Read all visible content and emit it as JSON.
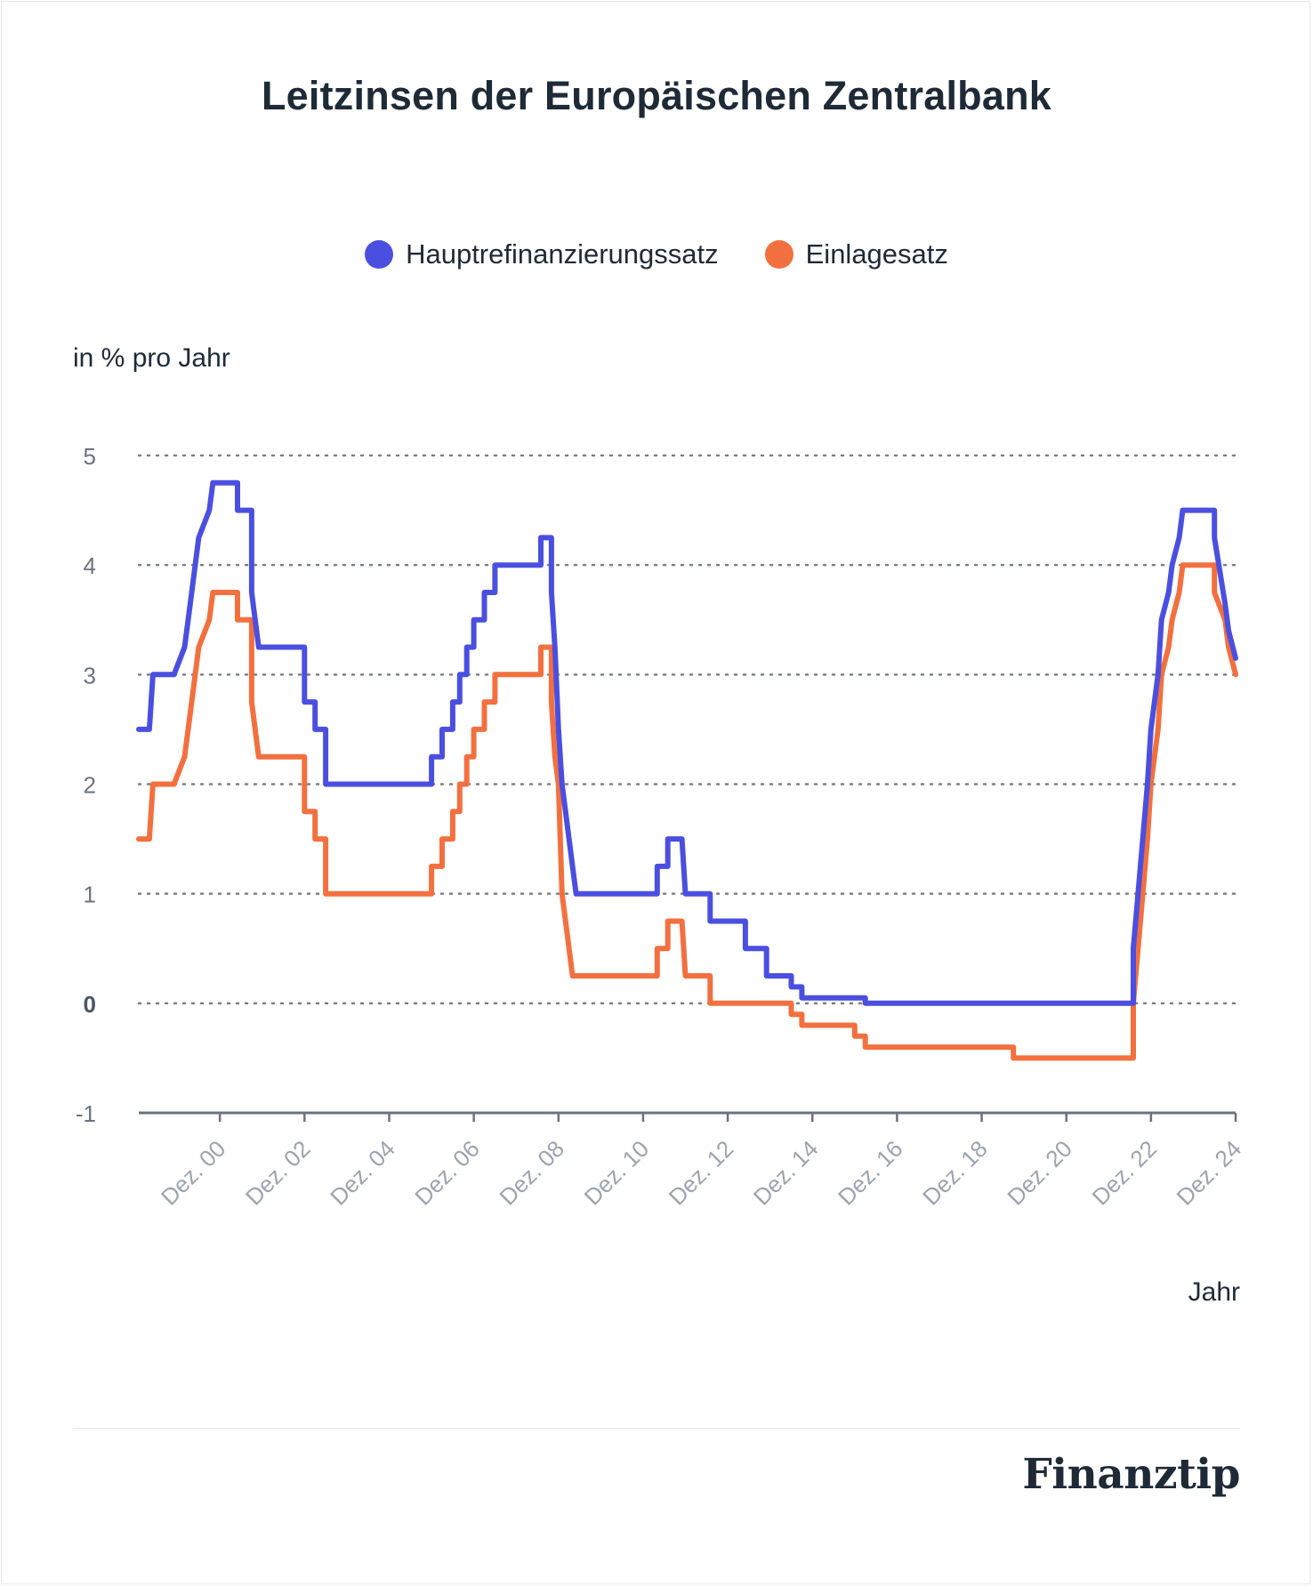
{
  "chart_data": {
    "type": "line",
    "title": "Leitzinsen der Europäischen Zentralbank",
    "ylabel": "in % pro Jahr",
    "xlabel": "Jahr",
    "ylim": [
      -1,
      5
    ],
    "yticks": [
      {
        "value": 5,
        "label": "5"
      },
      {
        "value": 4,
        "label": "4"
      },
      {
        "value": 3,
        "label": "3"
      },
      {
        "value": 2,
        "label": "2"
      },
      {
        "value": 1,
        "label": "1"
      },
      {
        "value": 0,
        "label": "0"
      },
      {
        "value": -1,
        "label": "-1"
      }
    ],
    "xlim": [
      "1999-01",
      "2024-12"
    ],
    "xticks": [
      "Dez. 00",
      "Dez. 02",
      "Dez. 04",
      "Dez. 06",
      "Dez. 08",
      "Dez. 10",
      "Dez. 12",
      "Dez. 14",
      "Dez. 16",
      "Dez. 18",
      "Dez. 20",
      "Dez. 22",
      "Dez. 24"
    ],
    "grid": true,
    "legend_position": "top-center",
    "series": [
      {
        "name": "Hauptrefinanzierungssatz",
        "color": "#4a4fe0",
        "points": [
          [
            "1999-01",
            2.5
          ],
          [
            "1999-04",
            2.5
          ],
          [
            "1999-05",
            3.0
          ],
          [
            "1999-11",
            3.0
          ],
          [
            "2000-02",
            3.25
          ],
          [
            "2000-03",
            3.5
          ],
          [
            "2000-04",
            3.75
          ],
          [
            "2000-06",
            4.25
          ],
          [
            "2000-09",
            4.5
          ],
          [
            "2000-10",
            4.75
          ],
          [
            "2001-05",
            4.75
          ],
          [
            "2001-05",
            4.5
          ],
          [
            "2001-09",
            4.5
          ],
          [
            "2001-09",
            3.75
          ],
          [
            "2001-11",
            3.25
          ],
          [
            "2002-12",
            3.25
          ],
          [
            "2002-12",
            2.75
          ],
          [
            "2003-03",
            2.75
          ],
          [
            "2003-03",
            2.5
          ],
          [
            "2003-06",
            2.5
          ],
          [
            "2003-06",
            2.0
          ],
          [
            "2005-12",
            2.0
          ],
          [
            "2005-12",
            2.25
          ],
          [
            "2006-03",
            2.25
          ],
          [
            "2006-03",
            2.5
          ],
          [
            "2006-06",
            2.5
          ],
          [
            "2006-06",
            2.75
          ],
          [
            "2006-08",
            2.75
          ],
          [
            "2006-08",
            3.0
          ],
          [
            "2006-10",
            3.0
          ],
          [
            "2006-10",
            3.25
          ],
          [
            "2006-12",
            3.25
          ],
          [
            "2006-12",
            3.5
          ],
          [
            "2007-03",
            3.5
          ],
          [
            "2007-03",
            3.75
          ],
          [
            "2007-06",
            3.75
          ],
          [
            "2007-06",
            4.0
          ],
          [
            "2008-07",
            4.0
          ],
          [
            "2008-07",
            4.25
          ],
          [
            "2008-10",
            4.25
          ],
          [
            "2008-10",
            3.75
          ],
          [
            "2008-11",
            3.25
          ],
          [
            "2008-12",
            2.5
          ],
          [
            "2009-01",
            2.0
          ],
          [
            "2009-03",
            1.5
          ],
          [
            "2009-04",
            1.25
          ],
          [
            "2009-05",
            1.0
          ],
          [
            "2011-04",
            1.0
          ],
          [
            "2011-04",
            1.25
          ],
          [
            "2011-07",
            1.25
          ],
          [
            "2011-07",
            1.5
          ],
          [
            "2011-11",
            1.5
          ],
          [
            "2011-12",
            1.0
          ],
          [
            "2012-07",
            1.0
          ],
          [
            "2012-07",
            0.75
          ],
          [
            "2013-05",
            0.75
          ],
          [
            "2013-05",
            0.5
          ],
          [
            "2013-11",
            0.5
          ],
          [
            "2013-11",
            0.25
          ],
          [
            "2014-06",
            0.25
          ],
          [
            "2014-06",
            0.15
          ],
          [
            "2014-09",
            0.15
          ],
          [
            "2014-09",
            0.05
          ],
          [
            "2016-03",
            0.05
          ],
          [
            "2016-03",
            0.0
          ],
          [
            "2022-07",
            0.0
          ],
          [
            "2022-07",
            0.5
          ],
          [
            "2022-09",
            1.25
          ],
          [
            "2022-11",
            2.0
          ],
          [
            "2022-12",
            2.5
          ],
          [
            "2023-02",
            3.0
          ],
          [
            "2023-03",
            3.5
          ],
          [
            "2023-05",
            3.75
          ],
          [
            "2023-06",
            4.0
          ],
          [
            "2023-08",
            4.25
          ],
          [
            "2023-09",
            4.5
          ],
          [
            "2024-06",
            4.5
          ],
          [
            "2024-06",
            4.25
          ],
          [
            "2024-09",
            3.65
          ],
          [
            "2024-10",
            3.4
          ],
          [
            "2024-12",
            3.15
          ]
        ]
      },
      {
        "name": "Einlagesatz",
        "color": "#f2703f",
        "points": [
          [
            "1999-01",
            1.5
          ],
          [
            "1999-04",
            1.5
          ],
          [
            "1999-05",
            2.0
          ],
          [
            "1999-11",
            2.0
          ],
          [
            "2000-02",
            2.25
          ],
          [
            "2000-03",
            2.5
          ],
          [
            "2000-04",
            2.75
          ],
          [
            "2000-06",
            3.25
          ],
          [
            "2000-09",
            3.5
          ],
          [
            "2000-10",
            3.75
          ],
          [
            "2001-05",
            3.75
          ],
          [
            "2001-05",
            3.5
          ],
          [
            "2001-09",
            3.5
          ],
          [
            "2001-09",
            2.75
          ],
          [
            "2001-11",
            2.25
          ],
          [
            "2002-12",
            2.25
          ],
          [
            "2002-12",
            1.75
          ],
          [
            "2003-03",
            1.75
          ],
          [
            "2003-03",
            1.5
          ],
          [
            "2003-06",
            1.5
          ],
          [
            "2003-06",
            1.0
          ],
          [
            "2005-12",
            1.0
          ],
          [
            "2005-12",
            1.25
          ],
          [
            "2006-03",
            1.25
          ],
          [
            "2006-03",
            1.5
          ],
          [
            "2006-06",
            1.5
          ],
          [
            "2006-06",
            1.75
          ],
          [
            "2006-08",
            1.75
          ],
          [
            "2006-08",
            2.0
          ],
          [
            "2006-10",
            2.0
          ],
          [
            "2006-10",
            2.25
          ],
          [
            "2006-12",
            2.25
          ],
          [
            "2006-12",
            2.5
          ],
          [
            "2007-03",
            2.5
          ],
          [
            "2007-03",
            2.75
          ],
          [
            "2007-06",
            2.75
          ],
          [
            "2007-06",
            3.0
          ],
          [
            "2008-07",
            3.0
          ],
          [
            "2008-07",
            3.25
          ],
          [
            "2008-10",
            3.25
          ],
          [
            "2008-10",
            2.75
          ],
          [
            "2008-11",
            2.25
          ],
          [
            "2008-12",
            2.0
          ],
          [
            "2009-01",
            1.0
          ],
          [
            "2009-03",
            0.5
          ],
          [
            "2009-04",
            0.25
          ],
          [
            "2011-04",
            0.25
          ],
          [
            "2011-04",
            0.5
          ],
          [
            "2011-07",
            0.5
          ],
          [
            "2011-07",
            0.75
          ],
          [
            "2011-11",
            0.75
          ],
          [
            "2011-12",
            0.25
          ],
          [
            "2012-07",
            0.25
          ],
          [
            "2012-07",
            0.0
          ],
          [
            "2014-06",
            0.0
          ],
          [
            "2014-06",
            -0.1
          ],
          [
            "2014-09",
            -0.1
          ],
          [
            "2014-09",
            -0.2
          ],
          [
            "2015-12",
            -0.2
          ],
          [
            "2015-12",
            -0.3
          ],
          [
            "2016-03",
            -0.3
          ],
          [
            "2016-03",
            -0.4
          ],
          [
            "2019-09",
            -0.4
          ],
          [
            "2019-09",
            -0.5
          ],
          [
            "2022-07",
            -0.5
          ],
          [
            "2022-07",
            0.0
          ],
          [
            "2022-09",
            0.75
          ],
          [
            "2022-11",
            1.5
          ],
          [
            "2022-12",
            2.0
          ],
          [
            "2023-02",
            2.5
          ],
          [
            "2023-03",
            3.0
          ],
          [
            "2023-05",
            3.25
          ],
          [
            "2023-06",
            3.5
          ],
          [
            "2023-08",
            3.75
          ],
          [
            "2023-09",
            4.0
          ],
          [
            "2024-06",
            4.0
          ],
          [
            "2024-06",
            3.75
          ],
          [
            "2024-09",
            3.5
          ],
          [
            "2024-10",
            3.25
          ],
          [
            "2024-12",
            3.0
          ]
        ]
      }
    ]
  },
  "brand": {
    "logo_text": "Finanztip"
  }
}
